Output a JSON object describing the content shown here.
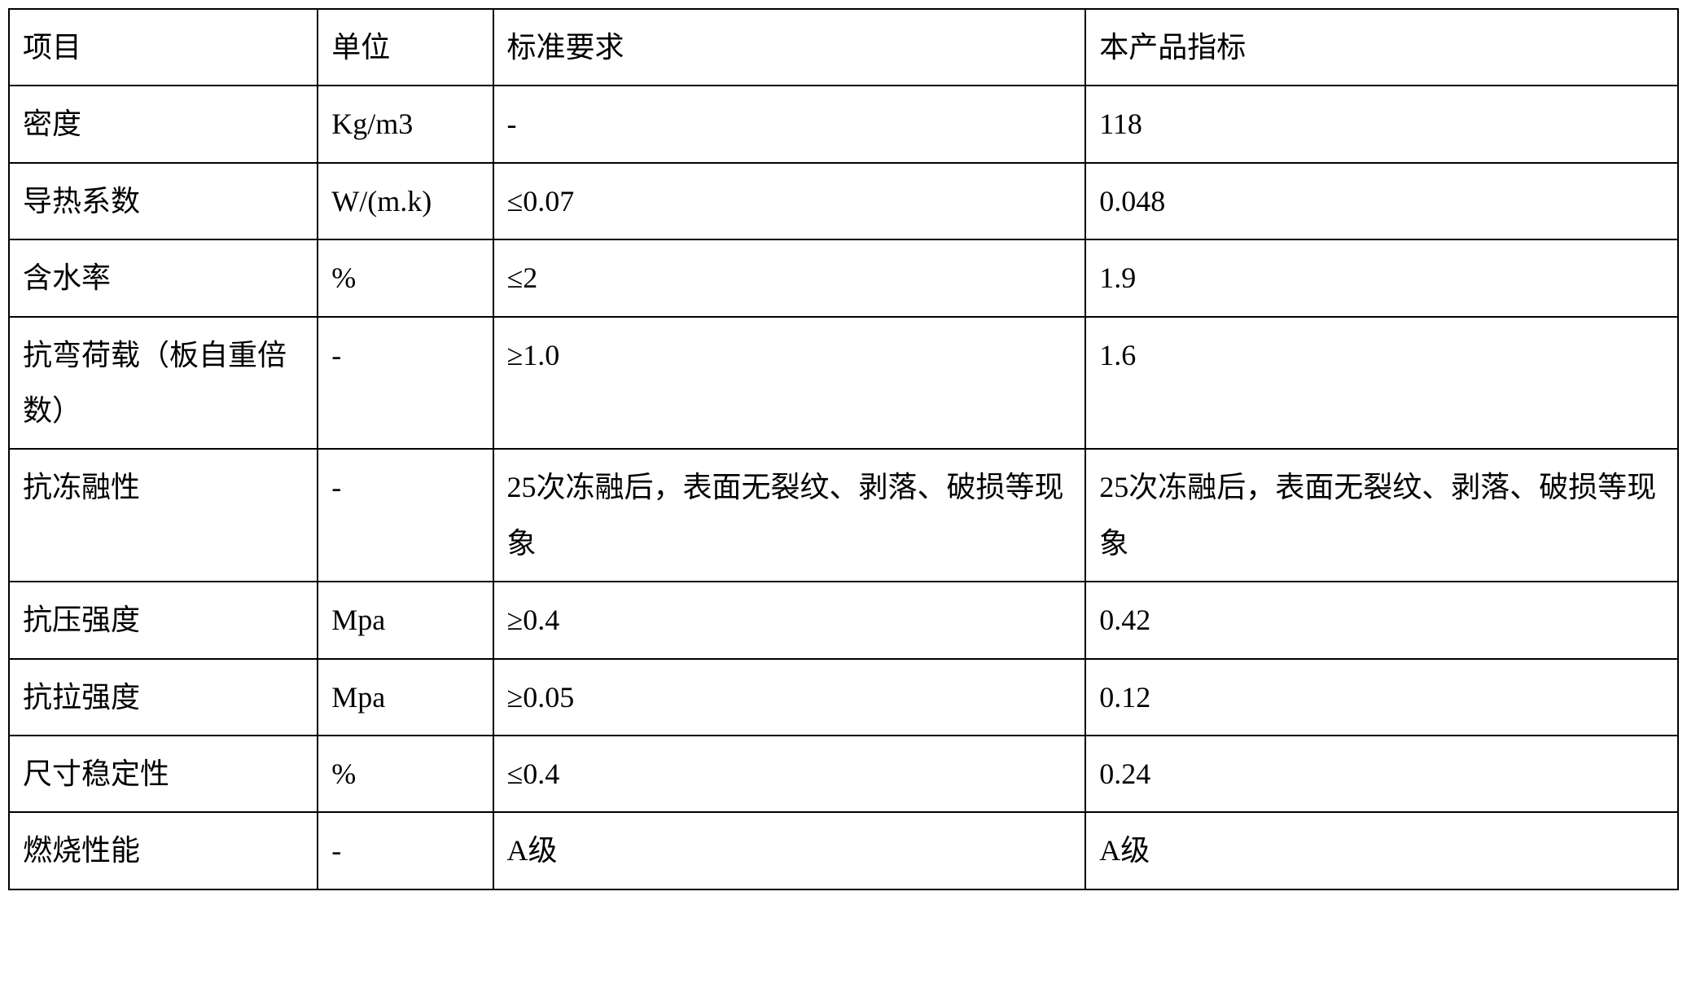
{
  "table": {
    "columns": [
      "项目",
      "单位",
      "标准要求",
      "本产品指标"
    ],
    "column_widths_percent": [
      18.5,
      10.5,
      35.5,
      35.5
    ],
    "rows": [
      [
        "密度",
        "Kg/m3",
        "-",
        "118"
      ],
      [
        "导热系数",
        "W/(m.k)",
        "≤0.07",
        "0.048"
      ],
      [
        "含水率",
        "%",
        "≤2",
        "1.9"
      ],
      [
        "抗弯荷载（板自重倍数）",
        "-",
        "≥1.0",
        "1.6"
      ],
      [
        "抗冻融性",
        "-",
        "25次冻融后，表面无裂纹、剥落、破损等现象",
        "25次冻融后，表面无裂纹、剥落、破损等现象"
      ],
      [
        "抗压强度",
        "Mpa",
        "≥0.4",
        "0.42"
      ],
      [
        "抗拉强度",
        "Mpa",
        "≥0.05",
        "0.12"
      ],
      [
        "尺寸稳定性",
        "%",
        "≤0.4",
        "0.24"
      ],
      [
        "燃烧性能",
        "-",
        "A级",
        "A级"
      ]
    ],
    "border_color": "#000000",
    "border_width": 2,
    "background_color": "#ffffff",
    "text_color": "#000000",
    "font_size": 36,
    "font_family": "SimSun",
    "cell_padding": "12px 16px",
    "line_height": 1.9
  }
}
